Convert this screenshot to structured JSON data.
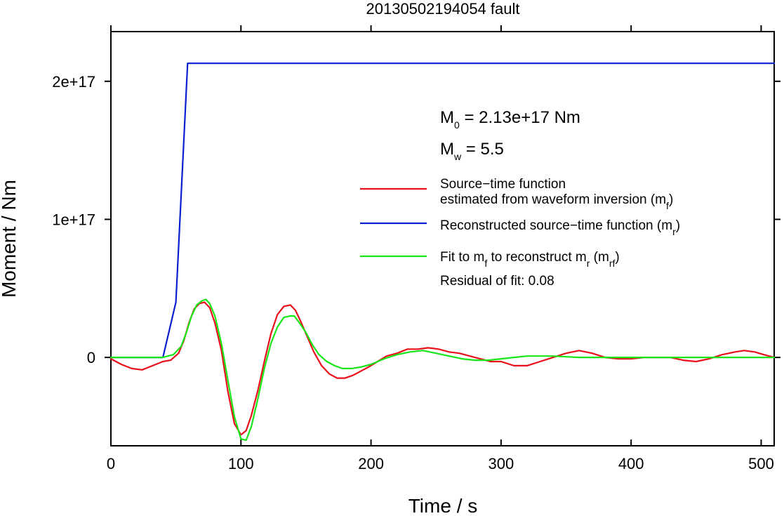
{
  "chart_data": {
    "type": "line",
    "title": "20130502194054 fault",
    "xlabel": "Time / s",
    "ylabel": "Moment / Nm",
    "xlim": [
      0,
      510
    ],
    "ylim": [
      -6.4e+16,
      2.36e+17
    ],
    "x_ticks": [
      0,
      100,
      200,
      300,
      400,
      500
    ],
    "x_tick_labels": [
      "0",
      "100",
      "200",
      "300",
      "400",
      "500"
    ],
    "y_ticks": [
      0,
      1e+17,
      2e+17
    ],
    "y_tick_labels": [
      "0",
      "1e+17",
      "2e+17"
    ],
    "grid": false,
    "legend_placement": "right",
    "annotations": {
      "m0": {
        "main": "M",
        "sub": "0",
        "rest": " = 2.13e+17 Nm"
      },
      "mw": {
        "main": "M",
        "sub": "w",
        "rest": " = 5.5"
      },
      "residual": "Residual of fit: 0.08"
    },
    "series": [
      {
        "key": "mf",
        "color": "#e8101a",
        "legend_lines": [
          [
            {
              "t": "Source−time function"
            }
          ],
          [
            {
              "t": "estimated from waveform inversion (m"
            },
            {
              "t": "f",
              "sub": true
            },
            {
              "t": ")"
            }
          ]
        ],
        "x": [
          0,
          8,
          16,
          24,
          32,
          40,
          46,
          52,
          56,
          60,
          64,
          68,
          72,
          76,
          80,
          85,
          90,
          95,
          100,
          104,
          108,
          113,
          118,
          123,
          128,
          133,
          138,
          142,
          146,
          151,
          156,
          162,
          168,
          174,
          180,
          186,
          192,
          198,
          205,
          212,
          220,
          228,
          236,
          244,
          252,
          260,
          268,
          276,
          284,
          292,
          300,
          310,
          320,
          330,
          340,
          350,
          360,
          370,
          380,
          390,
          400,
          410,
          420,
          430,
          440,
          450,
          460,
          470,
          480,
          487,
          495,
          502,
          510
        ],
        "y": [
          -1000000000000000.0,
          -5000000000000000.0,
          -8000000000000000.0,
          -9000000000000000.0,
          -6000000000000000.0,
          -3000000000000000.0,
          -2000000000000000.0,
          3000000000000000.0,
          1.2e+16,
          2.5e+16,
          3.5e+16,
          3.9e+16,
          4e+16,
          3.6e+16,
          2.5e+16,
          5000000000000000.0,
          -2.5e+16,
          -4.8e+16,
          -5.6e+16,
          -5.3e+16,
          -4.2e+16,
          -2.4e+16,
          -3000000000000000.0,
          1.7e+16,
          3.1e+16,
          3.7e+16,
          3.8e+16,
          3.4e+16,
          2.6e+16,
          1.5e+16,
          4000000000000000.0,
          -6000000000000000.0,
          -1.2e+16,
          -1.5e+16,
          -1.5e+16,
          -1.3e+16,
          -1e+16,
          -7000000000000000.0,
          -3000000000000000.0,
          1000000000000000.0,
          3000000000000000.0,
          6000000000000000.0,
          6000000000000000.0,
          7000000000000000.0,
          6000000000000000.0,
          4000000000000000.0,
          3000000000000000.0,
          1000000000000000.0,
          -1000000000000000.0,
          -3000000000000000.0,
          -3000000000000000.0,
          -6000000000000000.0,
          -6000000000000000.0,
          -3000000000000000.0,
          0,
          3000000000000000.0,
          5000000000000000.0,
          3000000000000000.0,
          0,
          -1000000000000000.0,
          -1000000000000000.0,
          0,
          0,
          0,
          -2000000000000000.0,
          -3000000000000000.0,
          -1000000000000000.0,
          2000000000000000.0,
          4000000000000000.0,
          5000000000000000.0,
          4000000000000000.0,
          2000000000000000.0,
          0
        ]
      },
      {
        "key": "mr",
        "color": "#0a1fd0",
        "legend_lines": [
          [
            {
              "t": "Reconstructed source−time function (m"
            },
            {
              "t": "r",
              "sub": true
            },
            {
              "t": ")"
            }
          ]
        ],
        "x": [
          0,
          40,
          50,
          59,
          510
        ],
        "y": [
          0,
          0,
          4e+16,
          2.13e+17,
          2.13e+17
        ]
      },
      {
        "key": "mrf",
        "color": "#19e619",
        "legend_lines": [
          [
            {
              "t": "Fit to m"
            },
            {
              "t": "f",
              "sub": true
            },
            {
              "t": " to reconstruct m"
            },
            {
              "t": "r",
              "sub": true
            },
            {
              "t": " (m"
            },
            {
              "t": "rf",
              "sub": true
            },
            {
              "t": ")"
            }
          ]
        ],
        "x": [
          0,
          20,
          40,
          48,
          54,
          58,
          62,
          66,
          70,
          73,
          76,
          80,
          85,
          90,
          95,
          100,
          104,
          108,
          113,
          118,
          123,
          128,
          133,
          138,
          141,
          145,
          150,
          155,
          160,
          166,
          172,
          178,
          185,
          192,
          200,
          210,
          220,
          230,
          240,
          250,
          260,
          270,
          280,
          290,
          300,
          310,
          320,
          330,
          340,
          360,
          380,
          400,
          420,
          440,
          460,
          480,
          500,
          510
        ],
        "y": [
          0,
          0,
          0,
          2000000000000000.0,
          8000000000000000.0,
          1.8e+16,
          3e+16,
          3.8e+16,
          4.1e+16,
          4.2e+16,
          3.9e+16,
          3e+16,
          1e+16,
          -1.7e+16,
          -4.3e+16,
          -5.9e+16,
          -6e+16,
          -5e+16,
          -3e+16,
          -8000000000000000.0,
          1e+16,
          2.2e+16,
          2.9e+16,
          3e+16,
          3e+16,
          2.5e+16,
          1.8e+16,
          9000000000000000.0,
          2000000000000000.0,
          -3000000000000000.0,
          -6000000000000000.0,
          -8000000000000000.0,
          -8000000000000000.0,
          -7000000000000000.0,
          -5000000000000000.0,
          -1000000000000000.0,
          2000000000000000.0,
          4000000000000000.0,
          5000000000000000.0,
          3000000000000000.0,
          1000000000000000.0,
          -1000000000000000.0,
          -2000000000000000.0,
          -2000000000000000.0,
          -1000000000000000.0,
          0,
          1000000000000000.0,
          1000000000000000.0,
          1000000000000000.0,
          0,
          0,
          0,
          0,
          0,
          0,
          0,
          0,
          0
        ]
      }
    ]
  }
}
